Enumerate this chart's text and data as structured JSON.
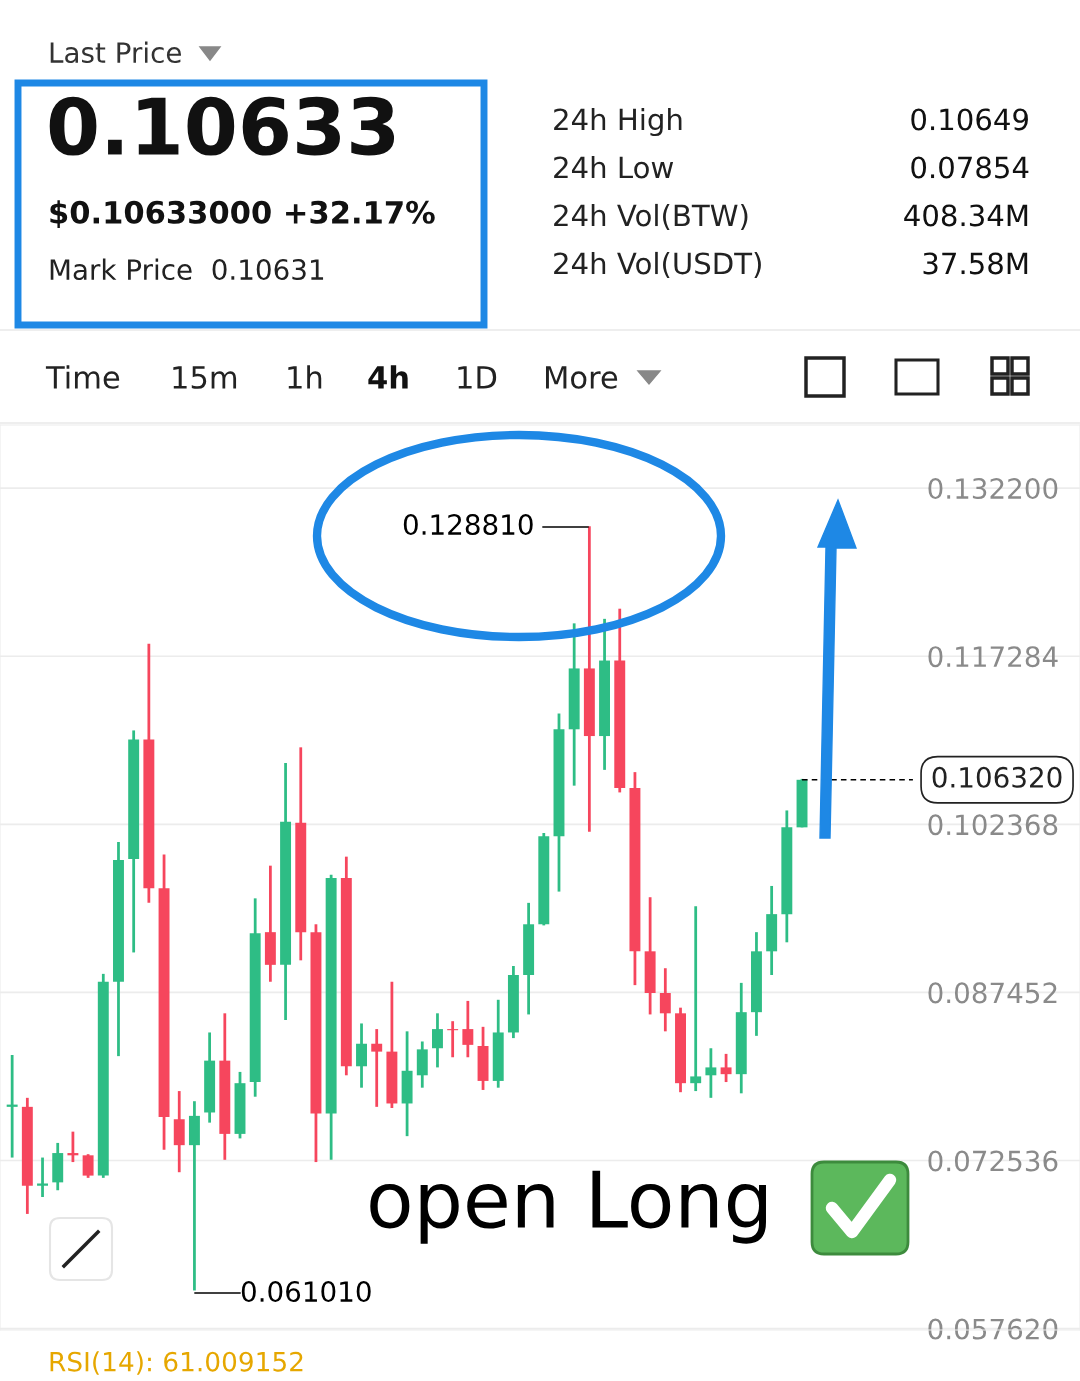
{
  "chart_data": {
    "type": "candlestick",
    "categories": [
      null,
      null,
      null,
      null,
      null,
      null,
      null,
      null,
      null,
      null,
      null,
      null,
      null,
      null,
      null,
      null,
      null,
      null,
      null,
      null,
      null,
      null,
      null,
      null,
      null,
      null,
      null,
      null,
      null,
      null,
      null,
      null,
      null,
      null,
      null,
      null,
      null,
      null,
      null,
      null,
      null,
      null,
      null,
      null,
      null,
      null,
      null,
      null,
      null,
      null,
      null,
      null,
      null
    ],
    "ohlc": [
      [
        0.0773,
        0.0819,
        0.0728,
        0.0775
      ],
      [
        0.0773,
        0.0781,
        0.0678,
        0.0703
      ],
      [
        0.0703,
        0.0728,
        0.0693,
        0.0705
      ],
      [
        0.0706,
        0.0741,
        0.0699,
        0.0732
      ],
      [
        0.0732,
        0.0751,
        0.0724,
        0.073
      ],
      [
        0.073,
        0.0731,
        0.071,
        0.0712
      ],
      [
        0.0712,
        0.0891,
        0.071,
        0.0884
      ],
      [
        0.0884,
        0.1008,
        0.0818,
        0.0992
      ],
      [
        0.0993,
        0.1107,
        0.091,
        0.1099
      ],
      [
        0.1099,
        0.1184,
        0.0954,
        0.0967
      ],
      [
        0.0967,
        0.0997,
        0.0735,
        0.0764
      ],
      [
        0.0762,
        0.0787,
        0.0715,
        0.0739
      ],
      [
        0.0739,
        0.0778,
        0.06101,
        0.0765
      ],
      [
        0.0768,
        0.0839,
        0.0759,
        0.0814
      ],
      [
        0.0814,
        0.0856,
        0.0726,
        0.0749
      ],
      [
        0.0749,
        0.0804,
        0.0745,
        0.0794
      ],
      [
        0.0795,
        0.0958,
        0.0782,
        0.0927
      ],
      [
        0.0928,
        0.0987,
        0.0884,
        0.0899
      ],
      [
        0.0899,
        0.1078,
        0.085,
        0.1026
      ],
      [
        0.1025,
        0.1092,
        0.0903,
        0.0928
      ],
      [
        0.0928,
        0.0935,
        0.0724,
        0.0767
      ],
      [
        0.0767,
        0.0979,
        0.0726,
        0.0976
      ],
      [
        0.0976,
        0.0995,
        0.0801,
        0.0809
      ],
      [
        0.0809,
        0.0847,
        0.079,
        0.0829
      ],
      [
        0.0829,
        0.0842,
        0.0773,
        0.0822
      ],
      [
        0.0822,
        0.0884,
        0.0772,
        0.0776
      ],
      [
        0.0776,
        0.084,
        0.0747,
        0.0805
      ],
      [
        0.0801,
        0.0831,
        0.079,
        0.0824
      ],
      [
        0.0825,
        0.0856,
        0.0808,
        0.0842
      ],
      [
        0.0842,
        0.0849,
        0.0817,
        0.0841
      ],
      [
        0.0842,
        0.0867,
        0.0817,
        0.0828
      ],
      [
        0.0827,
        0.0844,
        0.0788,
        0.0796
      ],
      [
        0.0796,
        0.0868,
        0.079,
        0.0839
      ],
      [
        0.0839,
        0.0898,
        0.0834,
        0.089
      ],
      [
        0.089,
        0.0954,
        0.0855,
        0.0935
      ],
      [
        0.0935,
        0.1016,
        0.0934,
        0.1013
      ],
      [
        0.1013,
        0.1122,
        0.0964,
        0.1108
      ],
      [
        0.1108,
        0.1202,
        0.1058,
        0.1162
      ],
      [
        0.1162,
        0.12881,
        0.1017,
        0.1102
      ],
      [
        0.1102,
        0.1206,
        0.1072,
        0.1169
      ],
      [
        0.1169,
        0.1215,
        0.1052,
        0.1056
      ],
      [
        0.1056,
        0.107,
        0.0881,
        0.0911
      ],
      [
        0.0911,
        0.0959,
        0.0855,
        0.0874
      ],
      [
        0.0874,
        0.0896,
        0.084,
        0.0856
      ],
      [
        0.0856,
        0.0861,
        0.0786,
        0.0794
      ],
      [
        0.0794,
        0.0951,
        0.0787,
        0.08
      ],
      [
        0.0801,
        0.0825,
        0.0781,
        0.0808
      ],
      [
        0.0808,
        0.082,
        0.0795,
        0.0802
      ],
      [
        0.0802,
        0.0883,
        0.0785,
        0.0857
      ],
      [
        0.0857,
        0.0928,
        0.0836,
        0.0911
      ],
      [
        0.0911,
        0.0969,
        0.089,
        0.0944
      ],
      [
        0.0944,
        0.1036,
        0.0919,
        0.1021
      ],
      [
        0.1021,
        0.1064,
        0.1021,
        0.10632
      ]
    ],
    "ylim": [
      0.0575,
      0.1378
    ],
    "yticks": [
      {
        "value": 0.1322,
        "label": "0.132200"
      },
      {
        "value": 0.117284,
        "label": "0.117284"
      },
      {
        "value": 0.102368,
        "label": "0.102368"
      },
      {
        "value": 0.087452,
        "label": "0.087452"
      },
      {
        "value": 0.072536,
        "label": "0.072536"
      },
      {
        "value": 0.05762,
        "label": "0.057620"
      }
    ],
    "tick_labels": "y",
    "grid": "y",
    "ref_lines": [
      {
        "axis": "y",
        "value": 0.10632,
        "label": "0.106320",
        "line_style": "dashed",
        "color": "#000000"
      }
    ],
    "annotations": [
      "Last Price",
      "0.10633",
      "$0.10633000 +32.17%",
      "Mark Price  0.10631",
      "24h High",
      "0.10649",
      "24h Low",
      "0.07854",
      "24h Vol(BTW)",
      "408.34M",
      "24h Vol(USDT)",
      "37.58M",
      "Time",
      "15m",
      "1h",
      "4h",
      "1D",
      "More",
      "open Long",
      "RSI(14): 61.009152",
      "0.128810",
      "0.061010"
    ]
  }
}
